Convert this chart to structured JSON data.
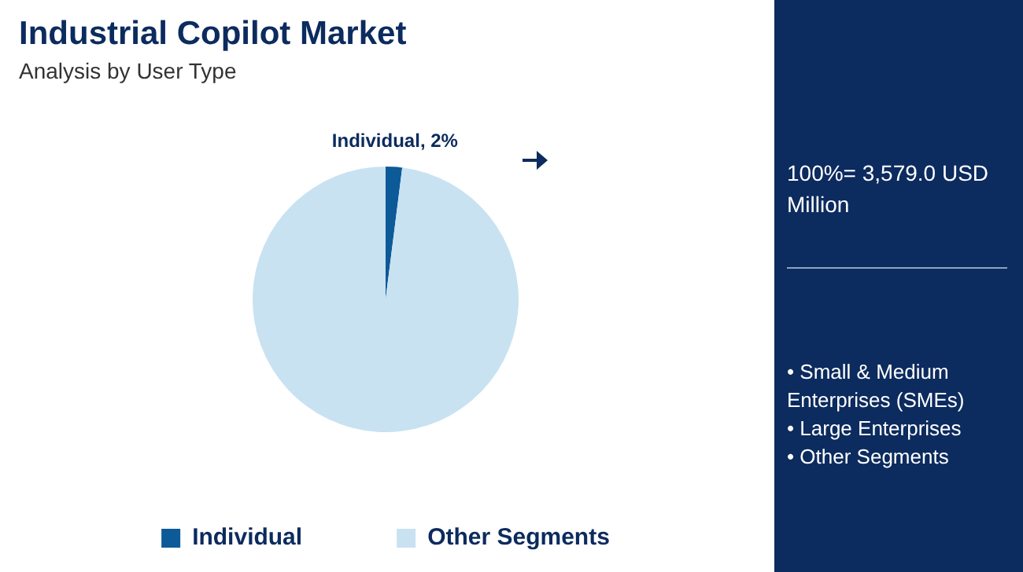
{
  "chart_data": {
    "type": "pie",
    "title": "Industrial Copilot Market",
    "subtitle": "Analysis by User Type",
    "categories": [
      "Individual",
      "Other Segments"
    ],
    "values": [
      2,
      98
    ],
    "colors": [
      "#0d5a99",
      "#c8e2f1"
    ],
    "value_labels": [
      "Individual, 2%",
      null
    ],
    "legend": "bottom",
    "annotations": [
      "100%= 3,579.0 USD Million",
      "• Small & Medium Enterprises (SMEs)",
      "• Large Enterprises",
      "• Other Segments"
    ]
  }
}
